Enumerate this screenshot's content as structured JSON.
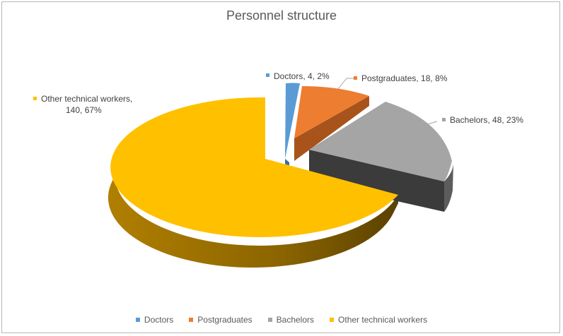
{
  "chart_data": {
    "type": "pie",
    "style": "3d-exploded",
    "title": "Personnel structure",
    "slices": [
      {
        "name": "Doctors",
        "value": 4,
        "percent": "2%",
        "label": "Doctors, 4, 2%",
        "color": "#5B9BD5"
      },
      {
        "name": "Postgraduates",
        "value": 18,
        "percent": "8%",
        "label": "Postgraduates, 18, 8%",
        "color": "#ED7D31"
      },
      {
        "name": "Bachelors",
        "value": 48,
        "percent": "23%",
        "label": "Bachelors, 48, 23%",
        "color": "#A5A5A5"
      },
      {
        "name": "Other technical workers",
        "value": 140,
        "percent": "67%",
        "label_lines": [
          "Other technical workers,",
          "140, 67%"
        ],
        "color": "#FFC000"
      }
    ],
    "legend_position": "bottom"
  }
}
